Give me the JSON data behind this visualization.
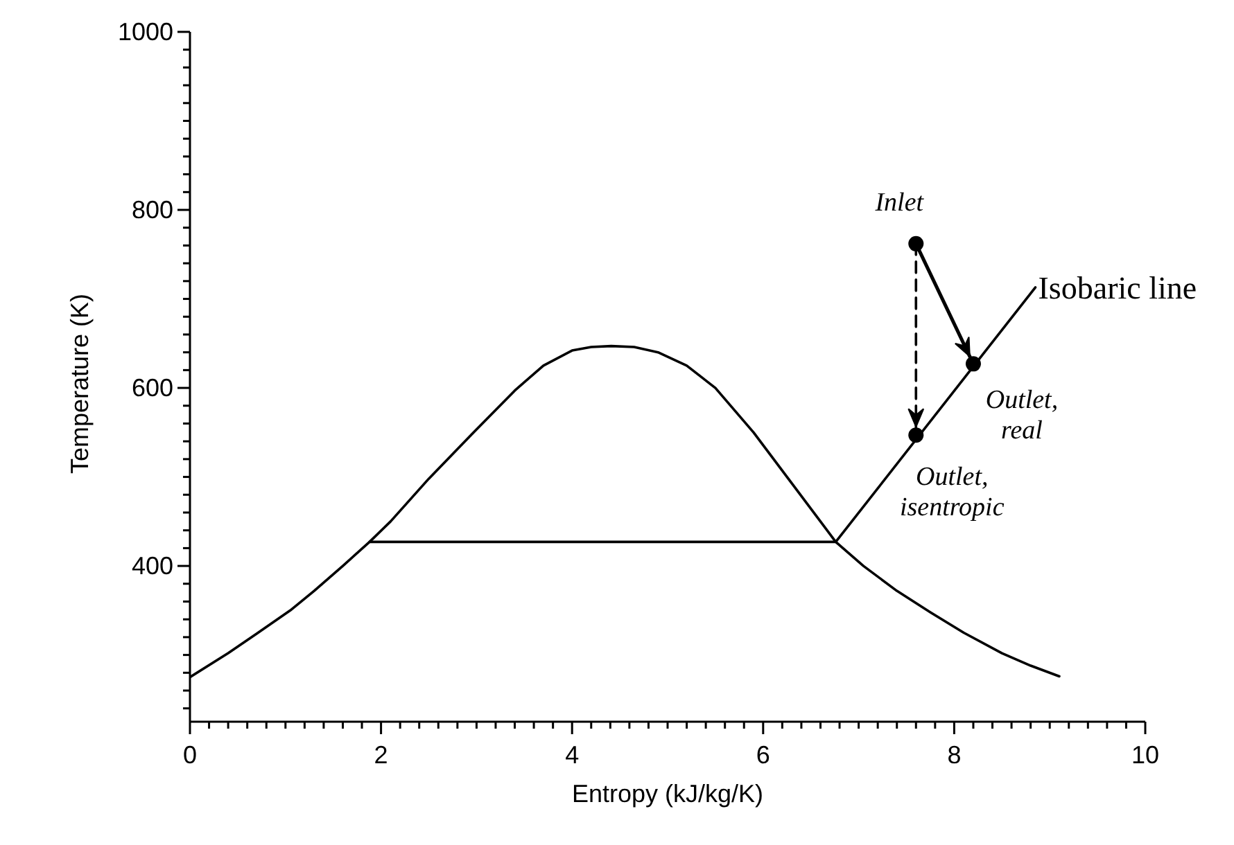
{
  "chart_data": {
    "type": "line",
    "xlabel": "Entropy (kJ/kg/K)",
    "ylabel": "Temperature (K)",
    "xlim": [
      0,
      10
    ],
    "ylim": [
      225,
      1000
    ],
    "xticks": [
      0,
      {
        "value": 0.2,
        "label": null
      },
      {
        "value": 0.4,
        "label": null
      },
      {
        "value": 0.6,
        "label": null
      },
      {
        "value": 0.8,
        "label": null
      },
      {
        "value": 1,
        "label": null
      },
      {
        "value": 1.2,
        "label": null
      },
      {
        "value": 1.4,
        "label": null
      },
      {
        "value": 1.6,
        "label": null
      },
      {
        "value": 1.8,
        "label": null
      },
      2,
      {
        "value": 2.2,
        "label": null
      },
      {
        "value": 2.4,
        "label": null
      },
      {
        "value": 2.6,
        "label": null
      },
      {
        "value": 2.8,
        "label": null
      },
      {
        "value": 3,
        "label": null
      },
      {
        "value": 3.2,
        "label": null
      },
      {
        "value": 3.4,
        "label": null
      },
      {
        "value": 3.6,
        "label": null
      },
      {
        "value": 3.8,
        "label": null
      },
      4,
      {
        "value": 4.2,
        "label": null
      },
      {
        "value": 4.4,
        "label": null
      },
      {
        "value": 4.6,
        "label": null
      },
      {
        "value": 4.8,
        "label": null
      },
      {
        "value": 5,
        "label": null
      },
      {
        "value": 5.2,
        "label": null
      },
      {
        "value": 5.4,
        "label": null
      },
      {
        "value": 5.6,
        "label": null
      },
      {
        "value": 5.8,
        "label": null
      },
      6,
      {
        "value": 6.2,
        "label": null
      },
      {
        "value": 6.4,
        "label": null
      },
      {
        "value": 6.6,
        "label": null
      },
      {
        "value": 6.8,
        "label": null
      },
      {
        "value": 7,
        "label": null
      },
      {
        "value": 7.2,
        "label": null
      },
      {
        "value": 7.4,
        "label": null
      },
      {
        "value": 7.6,
        "label": null
      },
      {
        "value": 7.8,
        "label": null
      },
      8,
      {
        "value": 8.2,
        "label": null
      },
      {
        "value": 8.4,
        "label": null
      },
      {
        "value": 8.6,
        "label": null
      },
      {
        "value": 8.8,
        "label": null
      },
      {
        "value": 9,
        "label": null
      },
      {
        "value": 9.2,
        "label": null
      },
      {
        "value": 9.4,
        "label": null
      },
      {
        "value": 9.6,
        "label": null
      },
      {
        "value": 9.8,
        "label": null
      },
      10
    ],
    "yticks": [
      {
        "value": 240,
        "label": null
      },
      {
        "value": 260,
        "label": null
      },
      {
        "value": 280,
        "label": null
      },
      {
        "value": 300,
        "label": null
      },
      {
        "value": 320,
        "label": null
      },
      {
        "value": 340,
        "label": null
      },
      {
        "value": 360,
        "label": null
      },
      {
        "value": 380,
        "label": null
      },
      400,
      {
        "value": 420,
        "label": null
      },
      {
        "value": 440,
        "label": null
      },
      {
        "value": 460,
        "label": null
      },
      {
        "value": 480,
        "label": null
      },
      {
        "value": 500,
        "label": null
      },
      {
        "value": 520,
        "label": null
      },
      {
        "value": 540,
        "label": null
      },
      {
        "value": 560,
        "label": null
      },
      {
        "value": 580,
        "label": null
      },
      600,
      {
        "value": 620,
        "label": null
      },
      {
        "value": 640,
        "label": null
      },
      {
        "value": 660,
        "label": null
      },
      {
        "value": 680,
        "label": null
      },
      {
        "value": 700,
        "label": null
      },
      {
        "value": 720,
        "label": null
      },
      {
        "value": 740,
        "label": null
      },
      {
        "value": 760,
        "label": null
      },
      {
        "value": 780,
        "label": null
      },
      800,
      {
        "value": 820,
        "label": null
      },
      {
        "value": 840,
        "label": null
      },
      {
        "value": 860,
        "label": null
      },
      {
        "value": 880,
        "label": null
      },
      {
        "value": 900,
        "label": null
      },
      {
        "value": 920,
        "label": null
      },
      {
        "value": 940,
        "label": null
      },
      {
        "value": 960,
        "label": null
      },
      {
        "value": 980,
        "label": null
      },
      1000
    ],
    "marker": "none",
    "series": [
      {
        "color": "#000000",
        "x": [
          0,
          0.4,
          0.7,
          1.05,
          1.3,
          1.6,
          1.88,
          2.1,
          2.5,
          2.95,
          3.4,
          3.7,
          4.0,
          4.2,
          4.41,
          4.65,
          4.9,
          5.2,
          5.5,
          5.9,
          6.25,
          6.6,
          6.76,
          7.05,
          7.4,
          7.75,
          8.1,
          8.5,
          8.8,
          9.1
        ],
        "values": [
          275,
          302,
          324,
          350,
          372,
          400,
          427,
          450,
          498,
          548,
          597,
          625,
          642,
          646,
          647,
          646,
          640,
          625,
          600,
          550,
          500,
          450,
          427,
          400,
          372,
          348,
          325,
          302,
          288,
          276
        ]
      },
      {
        "color": "#000000",
        "x": [
          1.88,
          6.76
        ],
        "values": [
          427,
          427
        ]
      },
      {
        "color": "#000000",
        "x": [
          6.76,
          8.85
        ],
        "values": [
          427,
          713
        ]
      },
      {
        "type": "line",
        "color": "#000000",
        "line_style": "dashed",
        "x": [
          7.6,
          7.6
        ],
        "values": [
          762,
          547
        ]
      },
      {
        "type": "line",
        "color": "#000000",
        "x": [
          7.6,
          8.2
        ],
        "values": [
          762,
          627
        ]
      },
      {
        "type": "scatter",
        "marker": "circle",
        "color": "#000000",
        "x": [
          7.6,
          8.2,
          7.6
        ],
        "values": [
          762,
          627,
          547
        ]
      }
    ],
    "annotations": [
      {
        "text": "Inlet",
        "x": 7.6,
        "y": 762
      },
      {
        "text": "Outlet, real",
        "x": 8.2,
        "y": 627
      },
      {
        "text": "Outlet, isentropic",
        "x": 7.6,
        "y": 547
      },
      {
        "text": "Isobaric line",
        "x": 8.85,
        "y": 713
      }
    ]
  }
}
